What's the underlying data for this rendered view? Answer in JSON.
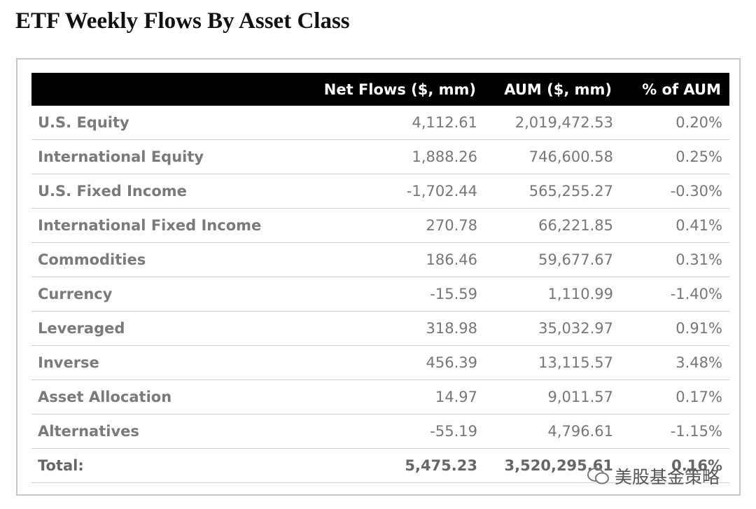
{
  "title": "ETF Weekly Flows By Asset Class",
  "table": {
    "header": [
      "",
      "Net Flows ($, mm)",
      "AUM ($, mm)",
      "% of AUM"
    ],
    "rows": [
      [
        "U.S. Equity",
        "4,112.61",
        "2,019,472.53",
        "0.20%"
      ],
      [
        "International Equity",
        "1,888.26",
        "746,600.58",
        "0.25%"
      ],
      [
        "U.S. Fixed Income",
        "-1,702.44",
        "565,255.27",
        "-0.30%"
      ],
      [
        "International Fixed Income",
        "270.78",
        "66,221.85",
        "0.41%"
      ],
      [
        "Commodities",
        "186.46",
        "59,677.67",
        "0.31%"
      ],
      [
        "Currency",
        "-15.59",
        "1,110.99",
        "-1.40%"
      ],
      [
        "Leveraged",
        "318.98",
        "35,032.97",
        "0.91%"
      ],
      [
        "Inverse",
        "456.39",
        "13,115.57",
        "3.48%"
      ],
      [
        "Asset Allocation",
        "14.97",
        "9,011.57",
        "0.17%"
      ],
      [
        "Alternatives",
        "-55.19",
        "4,796.61",
        "-1.15%"
      ]
    ],
    "total": [
      "Total:",
      "5,475.23",
      "3,520,295.61",
      "0.16%"
    ]
  },
  "watermark": "美股基金策略"
}
